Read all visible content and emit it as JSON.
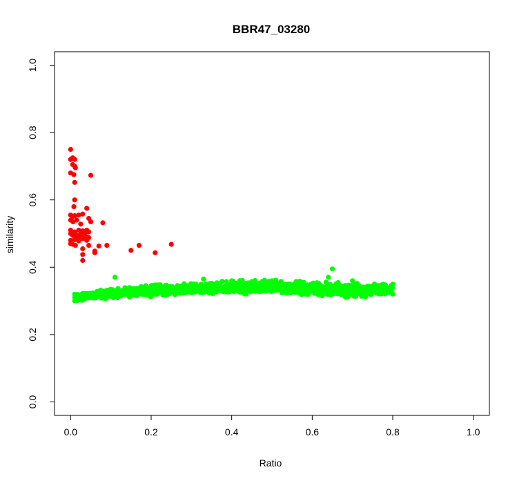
{
  "chart_data": {
    "type": "scatter",
    "title": "BBR47_03280",
    "xlabel": "Ratio",
    "ylabel": "similarity",
    "xlim": [
      -0.04,
      1.04
    ],
    "ylim": [
      -0.04,
      1.04
    ],
    "x_ticks": [
      "0.0",
      "0.2",
      "0.4",
      "0.6",
      "0.8",
      "1.0"
    ],
    "y_ticks": [
      "0.0",
      "0.2",
      "0.4",
      "0.6",
      "0.8",
      "1.0"
    ],
    "grid": false,
    "legend": "none",
    "series": [
      {
        "color": "#ff0000",
        "points": [
          [
            0.0,
            0.75
          ],
          [
            0.005,
            0.725
          ],
          [
            0.0,
            0.72
          ],
          [
            0.01,
            0.72
          ],
          [
            0.005,
            0.705
          ],
          [
            0.01,
            0.7
          ],
          [
            0.0,
            0.68
          ],
          [
            0.008,
            0.675
          ],
          [
            0.012,
            0.695
          ],
          [
            0.05,
            0.673
          ],
          [
            0.01,
            0.652
          ],
          [
            0.01,
            0.6
          ],
          [
            0.008,
            0.58
          ],
          [
            0.04,
            0.575
          ],
          [
            0.0,
            0.555
          ],
          [
            0.005,
            0.55
          ],
          [
            0.01,
            0.553
          ],
          [
            0.02,
            0.555
          ],
          [
            0.03,
            0.558
          ],
          [
            0.0,
            0.54
          ],
          [
            0.006,
            0.535
          ],
          [
            0.015,
            0.54
          ],
          [
            0.045,
            0.545
          ],
          [
            0.05,
            0.535
          ],
          [
            0.025,
            0.528
          ],
          [
            0.08,
            0.532
          ],
          [
            0.0,
            0.51
          ],
          [
            0.01,
            0.505
          ],
          [
            0.02,
            0.51
          ],
          [
            0.03,
            0.508
          ],
          [
            0.035,
            0.505
          ],
          [
            0.04,
            0.51
          ],
          [
            0.045,
            0.505
          ],
          [
            0.0,
            0.5
          ],
          [
            0.005,
            0.495
          ],
          [
            0.01,
            0.49
          ],
          [
            0.015,
            0.495
          ],
          [
            0.02,
            0.49
          ],
          [
            0.025,
            0.498
          ],
          [
            0.03,
            0.492
          ],
          [
            0.035,
            0.497
          ],
          [
            0.04,
            0.49
          ],
          [
            0.045,
            0.488
          ],
          [
            0.0,
            0.48
          ],
          [
            0.01,
            0.482
          ],
          [
            0.02,
            0.478
          ],
          [
            0.03,
            0.485
          ],
          [
            0.04,
            0.48
          ],
          [
            0.0,
            0.47
          ],
          [
            0.005,
            0.468
          ],
          [
            0.012,
            0.465
          ],
          [
            0.03,
            0.455
          ],
          [
            0.045,
            0.465
          ],
          [
            0.07,
            0.463
          ],
          [
            0.09,
            0.465
          ],
          [
            0.06,
            0.448
          ],
          [
            0.06,
            0.443
          ],
          [
            0.03,
            0.438
          ],
          [
            0.03,
            0.42
          ],
          [
            0.15,
            0.45
          ],
          [
            0.17,
            0.465
          ],
          [
            0.21,
            0.443
          ],
          [
            0.25,
            0.468
          ]
        ]
      },
      {
        "color": "#00ff00",
        "points": [
          [
            0.01,
            0.32
          ],
          [
            0.01,
            0.31
          ],
          [
            0.01,
            0.3
          ],
          [
            0.015,
            0.3
          ],
          [
            0.02,
            0.305
          ],
          [
            0.03,
            0.31
          ],
          [
            0.03,
            0.315
          ],
          [
            0.05,
            0.31
          ],
          [
            0.07,
            0.32
          ],
          [
            0.11,
            0.37
          ],
          [
            0.2,
            0.345
          ],
          [
            0.3,
            0.34
          ],
          [
            0.33,
            0.365
          ],
          [
            0.4,
            0.36
          ],
          [
            0.5,
            0.36
          ],
          [
            0.6,
            0.35
          ],
          [
            0.64,
            0.37
          ],
          [
            0.65,
            0.395
          ],
          [
            0.7,
            0.36
          ],
          [
            0.8,
            0.35
          ],
          [
            0.8,
            0.32
          ]
        ],
        "band": {
          "x": [
            0.01,
            0.1,
            0.2,
            0.3,
            0.4,
            0.5,
            0.6,
            0.7,
            0.8
          ],
          "y_low": [
            0.3,
            0.31,
            0.315,
            0.32,
            0.325,
            0.325,
            0.32,
            0.315,
            0.315
          ],
          "y_high": [
            0.32,
            0.335,
            0.345,
            0.35,
            0.355,
            0.36,
            0.355,
            0.35,
            0.35
          ]
        }
      }
    ]
  }
}
